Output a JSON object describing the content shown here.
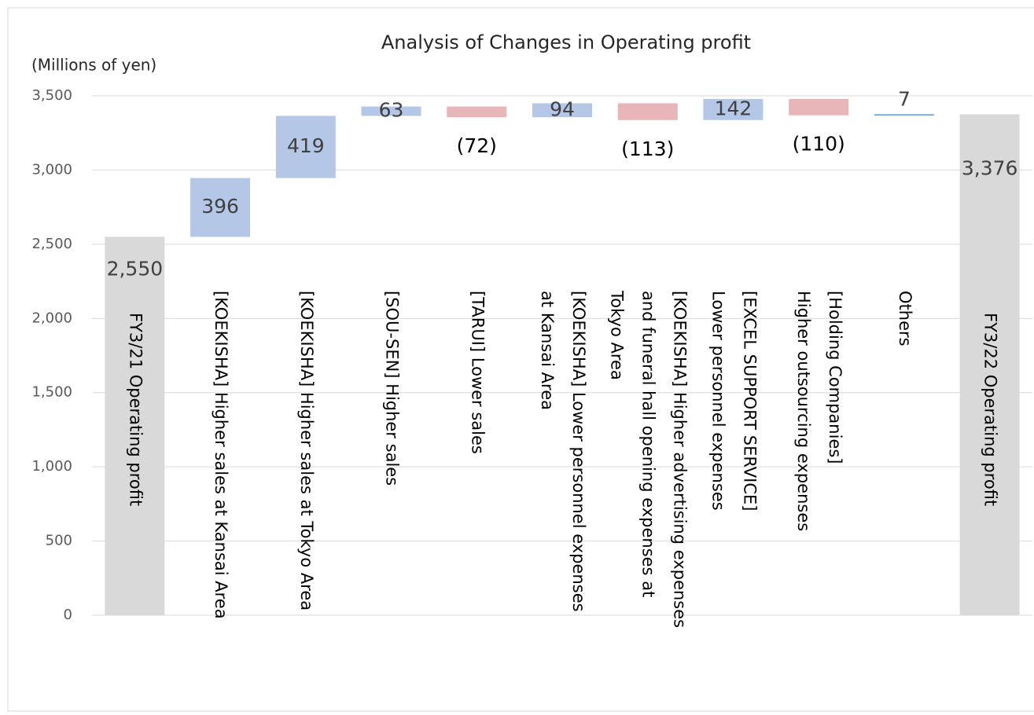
{
  "chart_data": {
    "type": "waterfall",
    "title": "Analysis of Changes in Operating profit",
    "y_axis_label": "(Millions of yen)",
    "categories": [
      [
        "FY3/21 Operating profit"
      ],
      [
        "[KOEKISHA] Higher sales at Kansai Area"
      ],
      [
        "[KOEKISHA] Higher sales at Tokyo Area"
      ],
      [
        "[SOU-SEN] Higher sales"
      ],
      [
        "[TARUI] Lower sales"
      ],
      [
        "[KOEKISHA] Lower personnel expenses",
        "at Kansai Area"
      ],
      [
        "[KOEKISHA] Higher advertising expenses",
        "and funeral hall opening expenses at",
        "Tokyo Area"
      ],
      [
        "[EXCEL SUPPORT SERVICE]",
        "Lower personnel expenses"
      ],
      [
        "[Holding Companies]",
        "Higher outsourcing expenses"
      ],
      [
        "Others"
      ],
      [
        "FY3/22 Operating profit"
      ]
    ],
    "measure": [
      "absolute",
      "relative",
      "relative",
      "relative",
      "relative",
      "relative",
      "relative",
      "relative",
      "relative",
      "relative",
      "total"
    ],
    "values": [
      2550,
      396,
      419,
      63,
      -72,
      94,
      -113,
      142,
      -110,
      7,
      3376
    ],
    "value_labels": [
      "2,550",
      "396",
      "419",
      "63",
      "(72)",
      "94",
      "(113)",
      "142",
      "(110)",
      "7",
      "3,376"
    ],
    "colors": {
      "increase": "#b4c7e7",
      "decrease": "#e8b5b8",
      "total": "#d9d9d9"
    },
    "ylim": [
      0,
      3500
    ],
    "yticks": [
      0,
      500,
      {
        "value": 1000,
        "label": "1,000"
      },
      {
        "value": 1500,
        "label": "1,500"
      },
      {
        "value": 2000,
        "label": "2,000"
      },
      {
        "value": 2500,
        "label": "2,500"
      },
      {
        "value": 3000,
        "label": "3,000"
      },
      {
        "value": 3500,
        "label": "3,500"
      }
    ],
    "grid": true
  }
}
